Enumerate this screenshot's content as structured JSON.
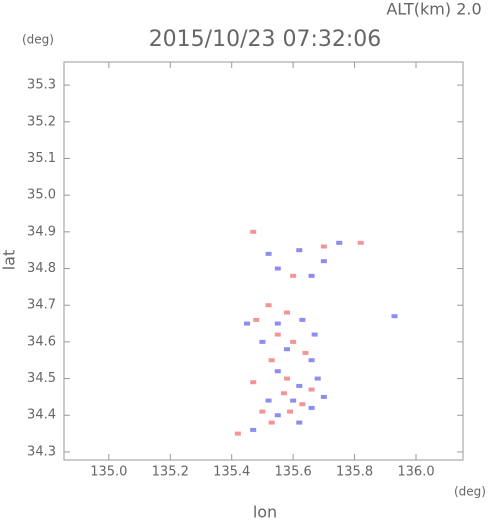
{
  "chart_data": {
    "type": "scatter",
    "title": "2015/10/23 07:32:06",
    "altitude_label": "ALT(km) 2.0",
    "y_unit": "(deg)",
    "x_unit": "(deg)",
    "xlabel": "lon",
    "ylabel": "lat",
    "xlim": [
      134.854,
      136.153
    ],
    "ylim": [
      34.278,
      35.363
    ],
    "xticks": [
      {
        "value": 135,
        "label": "135.0"
      },
      135.2,
      135.4,
      135.6,
      135.8,
      {
        "value": 136,
        "label": "136.0"
      }
    ],
    "yticks": [
      34.3,
      34.4,
      34.5,
      34.6,
      34.7,
      34.8,
      34.9,
      {
        "value": 35,
        "label": "35.0"
      },
      35.1,
      35.2,
      35.3
    ],
    "series": [
      {
        "color": "#6f6fee",
        "x": [
          135.52,
          135.55,
          135.62,
          135.7,
          135.75,
          135.66,
          135.55,
          135.63,
          135.67,
          135.5,
          135.58,
          135.66,
          135.55,
          135.62,
          135.68,
          135.6,
          135.52,
          135.66,
          135.55,
          135.62,
          135.47,
          135.93,
          135.45,
          135.7
        ],
        "y": [
          34.84,
          34.8,
          34.85,
          34.82,
          34.87,
          34.78,
          34.65,
          34.66,
          34.62,
          34.6,
          34.58,
          34.55,
          34.52,
          34.48,
          34.5,
          34.44,
          34.44,
          34.42,
          34.4,
          34.38,
          34.36,
          34.67,
          34.65,
          34.45
        ]
      },
      {
        "color": "#f07a7a",
        "x": [
          135.47,
          135.6,
          135.82,
          135.7,
          135.52,
          135.58,
          135.48,
          135.55,
          135.6,
          135.64,
          135.53,
          135.58,
          135.66,
          135.57,
          135.63,
          135.5,
          135.59,
          135.53,
          135.42,
          135.47
        ],
        "y": [
          34.9,
          34.78,
          34.87,
          34.86,
          34.7,
          34.68,
          34.66,
          34.62,
          34.6,
          34.57,
          34.55,
          34.5,
          34.47,
          34.46,
          34.43,
          34.41,
          34.41,
          34.38,
          34.35,
          34.49
        ]
      }
    ]
  }
}
